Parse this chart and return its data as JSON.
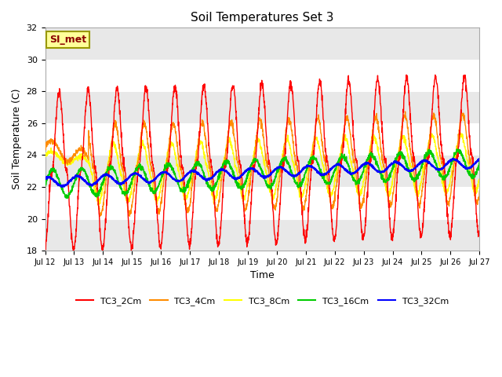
{
  "title": "Soil Temperatures Set 3",
  "xlabel": "Time",
  "ylabel": "Soil Temperature (C)",
  "ylim": [
    18,
    32
  ],
  "yticks": [
    18,
    20,
    22,
    24,
    26,
    28,
    30,
    32
  ],
  "series_colors": {
    "TC3_2Cm": "#FF0000",
    "TC3_4Cm": "#FF8C00",
    "TC3_8Cm": "#FFFF00",
    "TC3_16Cm": "#00CC00",
    "TC3_32Cm": "#0000FF"
  },
  "annotation_text": "SI_met",
  "annotation_color": "#8B0000",
  "annotation_bg": "#FFFF99",
  "annotation_border": "#999900",
  "plot_bg": "#FFFFFF",
  "fig_bg": "#FFFFFF",
  "band_color": "#E8E8E8"
}
